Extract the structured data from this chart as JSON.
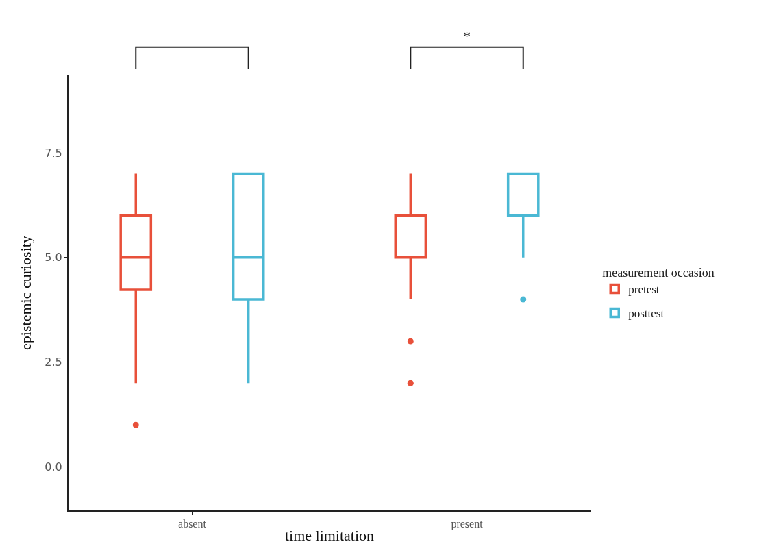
{
  "chart_data": {
    "type": "box",
    "xlabel": "time limitation",
    "ylabel": "epistemic curiosity",
    "legend_title": "measurement occasion",
    "categories": [
      "absent",
      "present"
    ],
    "ylim": [
      -1.04,
      9.35
    ],
    "yticks": [
      {
        "value": 0,
        "label": "0.0"
      },
      2.5,
      {
        "value": 5,
        "label": "5.0"
      },
      7.5
    ],
    "grid": false,
    "legend": "right",
    "series": [
      {
        "name": "pretest",
        "color": "#e8503a",
        "boxes": [
          {
            "low": 2,
            "q1": 4.23,
            "median": 5,
            "q3": 6,
            "high": 7,
            "outliers": [
              1
            ]
          },
          {
            "low": 4,
            "q1": 5,
            "median": 5,
            "q3": 6,
            "high": 7,
            "outliers": [
              3,
              2
            ]
          }
        ]
      },
      {
        "name": "posttest",
        "color": "#4ab8d4",
        "boxes": [
          {
            "low": 2,
            "q1": 4,
            "median": 5,
            "q3": 7,
            "high": 7
          },
          {
            "low": 5,
            "q1": 6,
            "median": 6,
            "q3": 7,
            "high": 7,
            "outliers": [
              4
            ]
          }
        ]
      }
    ],
    "annotations": [
      "*"
    ]
  }
}
